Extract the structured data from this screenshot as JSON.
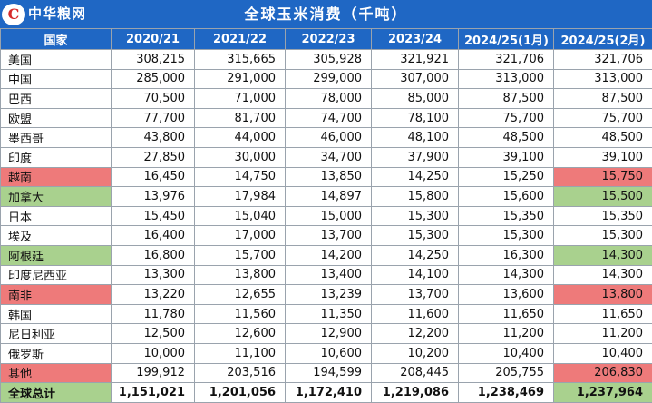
{
  "brand": {
    "logo_text": "中华粮网",
    "logo_mark": "C"
  },
  "title": "全球玉米消费（千吨）",
  "colors": {
    "header_bg": "#1f67c4",
    "highlight_red": "#ee7a7a",
    "highlight_green": "#a9d18e"
  },
  "table": {
    "headers": [
      "国家",
      "2020/21",
      "2021/22",
      "2022/23",
      "2023/24",
      "2024/25(1月)",
      "2024/25(2月)"
    ],
    "rows": [
      {
        "country": "美国",
        "values": [
          "308,215",
          "315,665",
          "305,928",
          "321,921",
          "321,706",
          "321,706"
        ],
        "hl_country": "",
        "hl_last": ""
      },
      {
        "country": "中国",
        "values": [
          "285,000",
          "291,000",
          "299,000",
          "307,000",
          "313,000",
          "313,000"
        ],
        "hl_country": "",
        "hl_last": ""
      },
      {
        "country": "巴西",
        "values": [
          "70,500",
          "71,000",
          "78,000",
          "85,000",
          "87,500",
          "87,500"
        ],
        "hl_country": "",
        "hl_last": ""
      },
      {
        "country": "欧盟",
        "values": [
          "77,700",
          "81,700",
          "74,700",
          "78,100",
          "75,700",
          "75,700"
        ],
        "hl_country": "",
        "hl_last": ""
      },
      {
        "country": "墨西哥",
        "values": [
          "43,800",
          "44,000",
          "46,000",
          "48,100",
          "48,500",
          "48,500"
        ],
        "hl_country": "",
        "hl_last": ""
      },
      {
        "country": "印度",
        "values": [
          "27,850",
          "30,000",
          "34,700",
          "37,900",
          "39,100",
          "39,100"
        ],
        "hl_country": "",
        "hl_last": ""
      },
      {
        "country": "越南",
        "values": [
          "16,450",
          "14,750",
          "13,850",
          "14,250",
          "15,250",
          "15,750"
        ],
        "hl_country": "red",
        "hl_last": "red"
      },
      {
        "country": "加拿大",
        "values": [
          "13,976",
          "17,984",
          "14,897",
          "15,800",
          "15,600",
          "15,500"
        ],
        "hl_country": "green",
        "hl_last": "green"
      },
      {
        "country": "日本",
        "values": [
          "15,450",
          "15,040",
          "15,000",
          "15,300",
          "15,350",
          "15,350"
        ],
        "hl_country": "",
        "hl_last": ""
      },
      {
        "country": "埃及",
        "values": [
          "16,400",
          "17,000",
          "13,700",
          "15,300",
          "15,300",
          "15,300"
        ],
        "hl_country": "",
        "hl_last": ""
      },
      {
        "country": "阿根廷",
        "values": [
          "16,800",
          "15,700",
          "14,200",
          "14,250",
          "16,300",
          "14,300"
        ],
        "hl_country": "green",
        "hl_last": "green"
      },
      {
        "country": "印度尼西亚",
        "values": [
          "13,300",
          "13,800",
          "13,400",
          "14,100",
          "14,300",
          "14,300"
        ],
        "hl_country": "",
        "hl_last": ""
      },
      {
        "country": "南非",
        "values": [
          "13,220",
          "12,655",
          "13,239",
          "13,700",
          "13,600",
          "13,800"
        ],
        "hl_country": "red",
        "hl_last": "red"
      },
      {
        "country": "韩国",
        "values": [
          "11,780",
          "11,560",
          "11,350",
          "11,600",
          "11,650",
          "11,650"
        ],
        "hl_country": "",
        "hl_last": ""
      },
      {
        "country": "尼日利亚",
        "values": [
          "12,500",
          "12,600",
          "12,900",
          "12,200",
          "11,200",
          "11,200"
        ],
        "hl_country": "",
        "hl_last": ""
      },
      {
        "country": "俄罗斯",
        "values": [
          "10,000",
          "11,100",
          "10,600",
          "10,200",
          "10,400",
          "10,400"
        ],
        "hl_country": "",
        "hl_last": ""
      },
      {
        "country": "其他",
        "values": [
          "199,912",
          "203,516",
          "194,599",
          "208,445",
          "205,755",
          "206,830"
        ],
        "hl_country": "red",
        "hl_last": "red"
      },
      {
        "country": "全球总计",
        "values": [
          "1,151,021",
          "1,201,056",
          "1,172,410",
          "1,219,086",
          "1,238,469",
          "1,237,964"
        ],
        "hl_country": "green",
        "hl_last": "green",
        "total": true
      }
    ]
  }
}
